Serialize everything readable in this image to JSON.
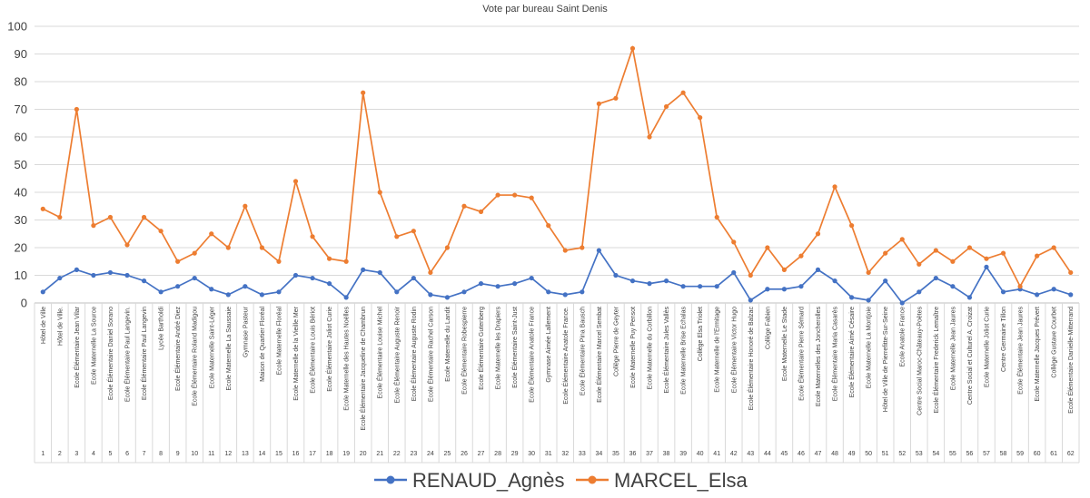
{
  "chart_data": {
    "type": "line",
    "title": "Vote par bureau Saint Denis",
    "xlabel": "",
    "ylabel": "",
    "ylim": [
      0,
      100
    ],
    "yticks": [
      0,
      10,
      20,
      30,
      40,
      50,
      60,
      70,
      80,
      90,
      100
    ],
    "grid": true,
    "legend": "bottom",
    "categories": [
      "Hôtel de Ville",
      "Hôtel de Ville.",
      "Ecole Élémentaire Jean Vilar",
      "Ecole Maternelle La Source",
      "Ecole Élémentaire Daniel Sorano",
      "Ecole Élémentaire Paul Langevin.",
      "Ecole Élémentaire Paul Langevin",
      "Lycée Bartholdi",
      "Ecole Élémentaire André Diez",
      "Ecole Élémentaire Roland Madigou",
      "Ecole Maternelle Saint-Léger",
      "Ecole Maternelle La Saussaie",
      "Gymnase Pasteur",
      "Maison de Quartier Floréal",
      "Ecole Maternelle Floréal",
      "Ecole Maternelle de la Vieille Mer",
      "Ecole Élémentaire Louis Bériot",
      "Ecole Élémentaire Joliot Curie",
      "Ecole Maternelle des Hautes Noëlles",
      "Ecole Élémentaire Jacqueline de Chambrun",
      "Ecole Élémentaire Louise Michel",
      "Ecole Élémentaire Auguste Renoir",
      "Ecole Élémentaire Auguste Rodin",
      "Ecole Élémentaire Rachel Carson",
      "Ecole Maternelle du Landit",
      "Ecole Élémentaire Robespierre",
      "Ecole Élémentaire Gutenberg",
      "Ecole Maternelle les Drapiers",
      "Ecole Élémentaire Saint-Just",
      "Ecole Élémentaire Anatole France",
      "Gymnase Aimée Lallement",
      "Ecole Élémentaire Anatole France.",
      "Ecole Élémentaire Pina Bausch",
      "Ecole Élémentaire Marcel Sembat",
      "Collège Pierre de Geyter",
      "Ecole Maternelle Puy Pensot",
      "Ecole Maternelle du Corbillon",
      "Ecole Élémentaire Jules Vallès",
      "Ecole Maternelle Brise Echalas",
      "Collège Elsa Triolet",
      "Ecole Maternelle de l'Ermitage",
      "Ecole Élémentaire Victor Hugo",
      "Ecole Élémentaire Honoré de Balzac",
      "Collège Fabien",
      "Ecole Maternelle Le Stade",
      "Ecole Élémentaire Pierre Sémard",
      "Ecole Maternelles des Joncherolles",
      "Ecole Élémentaire Maria Casarès",
      "Ecole Élémentaire Aimé Césaire",
      "Ecole Maternelle La Montjoie",
      "Hôtel de Ville de Pierrefitte-Sur-Seine",
      "Ecole Anatole France",
      "Centre Social Maroc-Châteauy-Poètes",
      "Ecole Élémentaire Frederick Lemaître",
      "Ecole Maternelle Jean Jaures",
      "Centre Social et Culturel A. Croizat",
      "Ecole Maternelle Joliot Curie",
      "Centre Germaine Tillon",
      "Ecole Élémentaire Jean Jaures",
      "Ecole Maternelle Jacques Prévert",
      "Collège Gustave Courbet",
      "Ecole Élémentaire Danielle-Mitterrand"
    ],
    "x": [
      1,
      2,
      3,
      4,
      5,
      6,
      7,
      8,
      9,
      10,
      11,
      12,
      13,
      14,
      15,
      16,
      17,
      18,
      19,
      20,
      21,
      22,
      23,
      24,
      25,
      26,
      27,
      28,
      29,
      30,
      31,
      32,
      33,
      34,
      35,
      36,
      37,
      38,
      39,
      40,
      41,
      42,
      43,
      44,
      45,
      46,
      47,
      48,
      49,
      50,
      51,
      52,
      53,
      54,
      55,
      56,
      57,
      58,
      59,
      60,
      61,
      62
    ],
    "series": [
      {
        "name": "RENAUD_Agnès",
        "color": "#4472c4",
        "values": [
          4,
          9,
          12,
          10,
          11,
          10,
          8,
          4,
          6,
          9,
          5,
          3,
          6,
          3,
          4,
          10,
          9,
          7,
          2,
          12,
          11,
          4,
          9,
          3,
          2,
          4,
          7,
          6,
          7,
          9,
          4,
          3,
          4,
          19,
          10,
          8,
          7,
          8,
          6,
          6,
          6,
          11,
          1,
          5,
          5,
          6,
          12,
          8,
          2,
          1,
          8,
          0,
          4,
          9,
          6,
          2,
          13,
          4,
          5,
          3,
          5,
          3
        ]
      },
      {
        "name": "MARCEL_Elsa",
        "color": "#ed7d31",
        "values": [
          34,
          31,
          70,
          28,
          31,
          21,
          31,
          26,
          15,
          18,
          25,
          20,
          35,
          20,
          15,
          44,
          24,
          16,
          15,
          76,
          40,
          24,
          26,
          11,
          20,
          35,
          33,
          39,
          39,
          38,
          28,
          19,
          20,
          72,
          74,
          92,
          60,
          71,
          76,
          67,
          31,
          22,
          10,
          20,
          12,
          17,
          25,
          42,
          28,
          11,
          18,
          23,
          14,
          19,
          15,
          20,
          16,
          18,
          6,
          17,
          20,
          11
        ]
      }
    ]
  }
}
